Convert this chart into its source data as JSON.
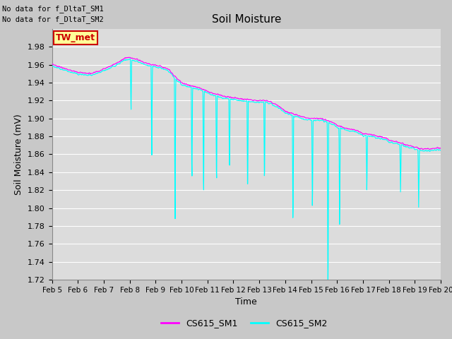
{
  "title": "Soil Moisture",
  "xlabel": "Time",
  "ylabel": "Soil Moisture (mV)",
  "ylim": [
    1.72,
    2.0
  ],
  "yticks": [
    1.72,
    1.74,
    1.76,
    1.78,
    1.8,
    1.82,
    1.84,
    1.86,
    1.88,
    1.9,
    1.92,
    1.94,
    1.96,
    1.98
  ],
  "sm1_color": "#ff00ff",
  "sm2_color": "#00ffff",
  "bg_color": "#dcdcdc",
  "grid_color": "#ffffff",
  "fig_color": "#c8c8c8",
  "no_data_text1": "No data for f_DltaT_SM1",
  "no_data_text2": "No data for f_DltaT_SM2",
  "tw_met_label": "TW_met",
  "tw_met_bg": "#ffff99",
  "tw_met_border": "#cc0000",
  "tw_met_color": "#cc0000",
  "legend_sm1": "CS615_SM1",
  "legend_sm2": "CS615_SM2",
  "xtick_labels": [
    "Feb 5",
    "Feb 6",
    "Feb 7",
    "Feb 8",
    "Feb 9",
    "Feb 10",
    "Feb 11",
    "Feb 12",
    "Feb 13",
    "Feb 14",
    "Feb 15",
    "Feb 16",
    "Feb 17",
    "Feb 18",
    "Feb 19",
    "Feb 20"
  ],
  "spike_days": [
    8.05,
    8.85,
    9.75,
    10.4,
    10.85,
    11.35,
    11.85,
    12.55,
    13.2,
    14.3,
    15.05,
    15.65,
    16.1,
    17.15,
    18.45,
    19.15
  ],
  "spike_depths": [
    0.06,
    0.11,
    0.18,
    0.115,
    0.13,
    0.11,
    0.09,
    0.115,
    0.1,
    0.135,
    0.11,
    0.22,
    0.12,
    0.065,
    0.055,
    0.065
  ]
}
